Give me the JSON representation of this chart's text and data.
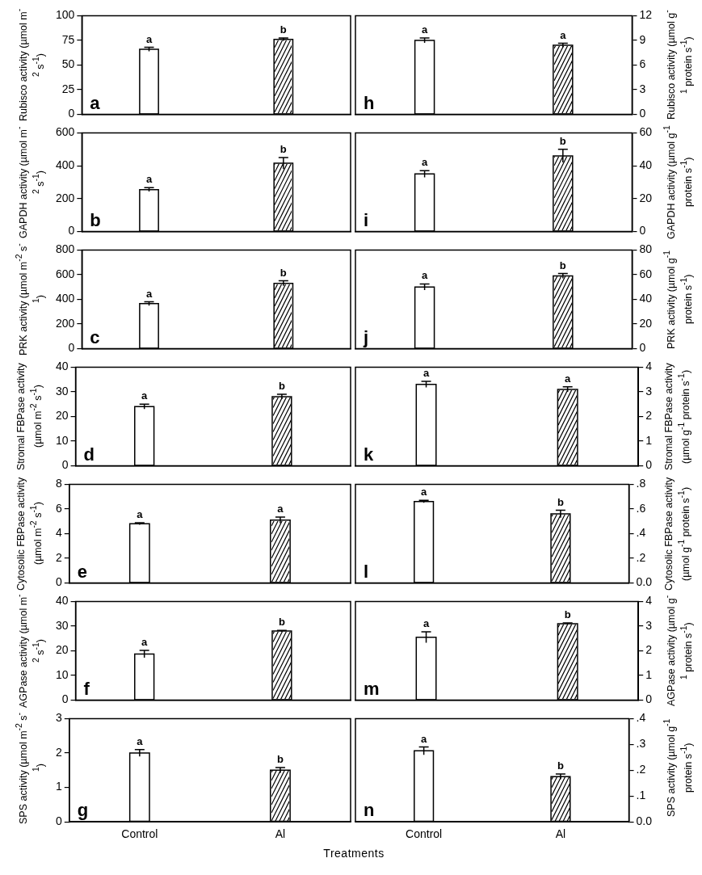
{
  "chart_data": [
    {
      "type": "bar",
      "categories": [
        "Control",
        "Al"
      ],
      "values": [
        66,
        76
      ],
      "errors": [
        2,
        1.5
      ],
      "colors": [
        "#ffffff",
        "#ffffff"
      ],
      "ylim": [
        0,
        100
      ],
      "yticks": [
        0,
        25,
        50,
        75,
        100
      ],
      "ylabel": "Rubisco activity (µmol m$^{-2}$ s$^{-1}$)",
      "tick_labels": "y",
      "annotations": [
        "a",
        {
          "text": "a",
          "x": "Control",
          "y": 68
        },
        {
          "text": "b",
          "x": "Al",
          "y": 77.5
        }
      ]
    },
    {
      "type": "bar",
      "categories": [
        "Control",
        "Al"
      ],
      "values": [
        255,
        415
      ],
      "errors": [
        12,
        35
      ],
      "colors": [
        "#ffffff",
        "#ffffff"
      ],
      "ylim": [
        0,
        600
      ],
      "yticks": [
        0,
        200,
        400,
        600
      ],
      "ylabel": "GAPDH activity (µmol m$^{-2}$ s$^{-1}$)",
      "tick_labels": "y",
      "annotations": [
        "b",
        {
          "text": "a",
          "x": "Control",
          "y": 267
        },
        {
          "text": "b",
          "x": "Al",
          "y": 450
        }
      ]
    },
    {
      "type": "bar",
      "categories": [
        "Control",
        "Al"
      ],
      "values": [
        365,
        530
      ],
      "errors": [
        15,
        20
      ],
      "colors": [
        "#ffffff",
        "#ffffff"
      ],
      "ylim": [
        0,
        800
      ],
      "yticks": [
        0,
        200,
        400,
        600,
        800
      ],
      "ylabel": "PRK activity (µmol m$^{-2}$ s$^{-1}$)",
      "tick_labels": "y",
      "annotations": [
        "c",
        {
          "text": "a",
          "x": "Control",
          "y": 380
        },
        {
          "text": "b",
          "x": "Al",
          "y": 550
        }
      ]
    },
    {
      "type": "bar",
      "categories": [
        "Control",
        "Al"
      ],
      "values": [
        24,
        28
      ],
      "errors": [
        1,
        1
      ],
      "colors": [
        "#ffffff",
        "#ffffff"
      ],
      "ylim": [
        0,
        40
      ],
      "yticks": [
        0,
        10,
        20,
        30,
        40
      ],
      "ylabel": "Stromal FBPase activity (µmol m$^{-2}$ s$^{-1}$)",
      "tick_labels": "y",
      "annotations": [
        "d",
        {
          "text": "a",
          "x": "Control",
          "y": 25
        },
        {
          "text": "b",
          "x": "Al",
          "y": 29
        }
      ]
    },
    {
      "type": "bar",
      "categories": [
        "Control",
        "Al"
      ],
      "values": [
        4.8,
        5.1
      ],
      "errors": [
        0.08,
        0.25
      ],
      "colors": [
        "#ffffff",
        "#ffffff"
      ],
      "ylim": [
        0,
        8
      ],
      "yticks": [
        0,
        2,
        4,
        6,
        8
      ],
      "ylabel": "Cytosolic FBPase activity (µmol m$^{-2}$ s$^{-1}$)",
      "tick_labels": "y",
      "annotations": [
        "e",
        {
          "text": "a",
          "x": "Control",
          "y": 4.88
        },
        {
          "text": "a",
          "x": "Al",
          "y": 5.35
        }
      ]
    },
    {
      "type": "bar",
      "categories": [
        "Control",
        "Al"
      ],
      "values": [
        18.7,
        28
      ],
      "errors": [
        1.5,
        0.3
      ],
      "colors": [
        "#ffffff",
        "#ffffff"
      ],
      "ylim": [
        0,
        40
      ],
      "yticks": [
        0,
        10,
        20,
        30,
        40
      ],
      "ylabel": "AGPase activity (µmol m$^{-2}$ s$^{-1}$)",
      "tick_labels": "y",
      "annotations": [
        "f",
        {
          "text": "a",
          "x": "Control",
          "y": 20.2
        },
        {
          "text": "b",
          "x": "Al",
          "y": 28.3
        }
      ]
    },
    {
      "type": "bar",
      "categories": [
        "Control",
        "Al"
      ],
      "values": [
        2.0,
        1.5
      ],
      "errors": [
        0.1,
        0.08
      ],
      "colors": [
        "#ffffff",
        "#ffffff"
      ],
      "ylim": [
        0,
        3
      ],
      "yticks": [
        0,
        1,
        2,
        3
      ],
      "ylabel": "SPS activity (µmol m$^{-2}$ s$^{-1}$)",
      "xlabel": "Treatments",
      "annotations": [
        "g",
        {
          "text": "a",
          "x": "Control",
          "y": 2.1
        },
        {
          "text": "b",
          "x": "Al",
          "y": 1.58
        }
      ]
    },
    {
      "type": "bar",
      "categories": [
        "Control",
        "Al"
      ],
      "values": [
        9.0,
        8.4
      ],
      "errors": [
        0.3,
        0.25
      ],
      "colors": [
        "#ffffff",
        "#ffffff"
      ],
      "ylim": [
        0,
        12
      ],
      "yticks": [
        0,
        3,
        6,
        9,
        12
      ],
      "ylabel": "Rubisco activity (µmol g$^{-1}$ protein s$^{-1}$)",
      "tick_labels": "y",
      "annotations": [
        "h",
        {
          "text": "a",
          "x": "Control",
          "y": 9.3
        },
        {
          "text": "a",
          "x": "Al",
          "y": 8.65
        }
      ]
    },
    {
      "type": "bar",
      "categories": [
        "Control",
        "Al"
      ],
      "values": [
        35,
        46
      ],
      "errors": [
        2,
        4
      ],
      "colors": [
        "#ffffff",
        "#ffffff"
      ],
      "ylim": [
        0,
        60
      ],
      "yticks": [
        0,
        20,
        40,
        60
      ],
      "ylabel": "GAPDH activity (µmol g$^{-1}$ protein s$^{-1}$)",
      "tick_labels": "y",
      "annotations": [
        "i",
        {
          "text": "a",
          "x": "Control",
          "y": 37
        },
        {
          "text": "b",
          "x": "Al",
          "y": 50
        }
      ]
    },
    {
      "type": "bar",
      "categories": [
        "Control",
        "Al"
      ],
      "values": [
        50,
        59
      ],
      "errors": [
        2.5,
        2
      ],
      "colors": [
        "#ffffff",
        "#ffffff"
      ],
      "ylim": [
        0,
        80
      ],
      "yticks": [
        0,
        20,
        40,
        60,
        80
      ],
      "ylabel": "PRK activity (µmol g$^{-1}$ protein s$^{-1}$)",
      "tick_labels": "y",
      "annotations": [
        "j",
        {
          "text": "a",
          "x": "Control",
          "y": 52.5
        },
        {
          "text": "b",
          "x": "Al",
          "y": 61
        }
      ]
    },
    {
      "type": "bar",
      "categories": [
        "Control",
        "Al"
      ],
      "values": [
        3.3,
        3.1
      ],
      "errors": [
        0.12,
        0.1
      ],
      "colors": [
        "#ffffff",
        "#ffffff"
      ],
      "ylim": [
        0,
        4
      ],
      "yticks": [
        0,
        1,
        2,
        3,
        4
      ],
      "ylabel": "Stromal FBPase activity (µmol g$^{-1}$ protein s$^{-1}$)",
      "tick_labels": "y",
      "annotations": [
        "k",
        {
          "text": "a",
          "x": "Control",
          "y": 3.42
        },
        {
          "text": "a",
          "x": "Al",
          "y": 3.2
        }
      ]
    },
    {
      "type": "bar",
      "categories": [
        "Control",
        "Al"
      ],
      "values": [
        0.66,
        0.56
      ],
      "errors": [
        0.01,
        0.03
      ],
      "colors": [
        "#ffffff",
        "#ffffff"
      ],
      "ylim": [
        0,
        0.8
      ],
      "yticks": [
        {
          "value": 0,
          "label": "0.0"
        },
        {
          "value": 0.2,
          "label": ".2"
        },
        {
          "value": 0.4,
          "label": ".4"
        },
        {
          "value": 0.6,
          "label": ".6"
        },
        {
          "value": 0.8,
          "label": ".8"
        }
      ],
      "ylabel": "Cytosolic FBPase activity (µmol g$^{-1}$ protein s$^{-1}$)",
      "tick_labels": "y",
      "annotations": [
        "l",
        {
          "text": "a",
          "x": "Control",
          "y": 0.67
        },
        {
          "text": "b",
          "x": "Al",
          "y": 0.59
        }
      ]
    },
    {
      "type": "bar",
      "categories": [
        "Control",
        "Al"
      ],
      "values": [
        2.55,
        3.1
      ],
      "errors": [
        0.22,
        0.03
      ],
      "colors": [
        "#ffffff",
        "#ffffff"
      ],
      "ylim": [
        0,
        4
      ],
      "yticks": [
        0,
        1,
        2,
        3,
        4
      ],
      "ylabel": "AGPase activity (µmol g$^{-1}$ protein s$^{-1}$)",
      "tick_labels": "y",
      "annotations": [
        "m",
        {
          "text": "a",
          "x": "Control",
          "y": 2.77
        },
        {
          "text": "b",
          "x": "Al",
          "y": 3.13
        }
      ]
    },
    {
      "type": "bar",
      "categories": [
        "Control",
        "Al"
      ],
      "values": [
        0.275,
        0.175
      ],
      "errors": [
        0.015,
        0.01
      ],
      "colors": [
        "#ffffff",
        "#ffffff"
      ],
      "ylim": [
        0,
        0.4
      ],
      "yticks": [
        {
          "value": 0,
          "label": "0.0"
        },
        {
          "value": 0.1,
          "label": ".1"
        },
        {
          "value": 0.2,
          "label": ".2"
        },
        {
          "value": 0.3,
          "label": ".3"
        },
        {
          "value": 0.4,
          "label": ".4"
        }
      ],
      "ylabel": "SPS activity (µmol g$^{-1}$ protein s$^{-1}$)",
      "annotations": [
        "n",
        {
          "text": "a",
          "x": "Control",
          "y": 0.29
        },
        {
          "text": "b",
          "x": "Al",
          "y": 0.185
        }
      ]
    }
  ]
}
